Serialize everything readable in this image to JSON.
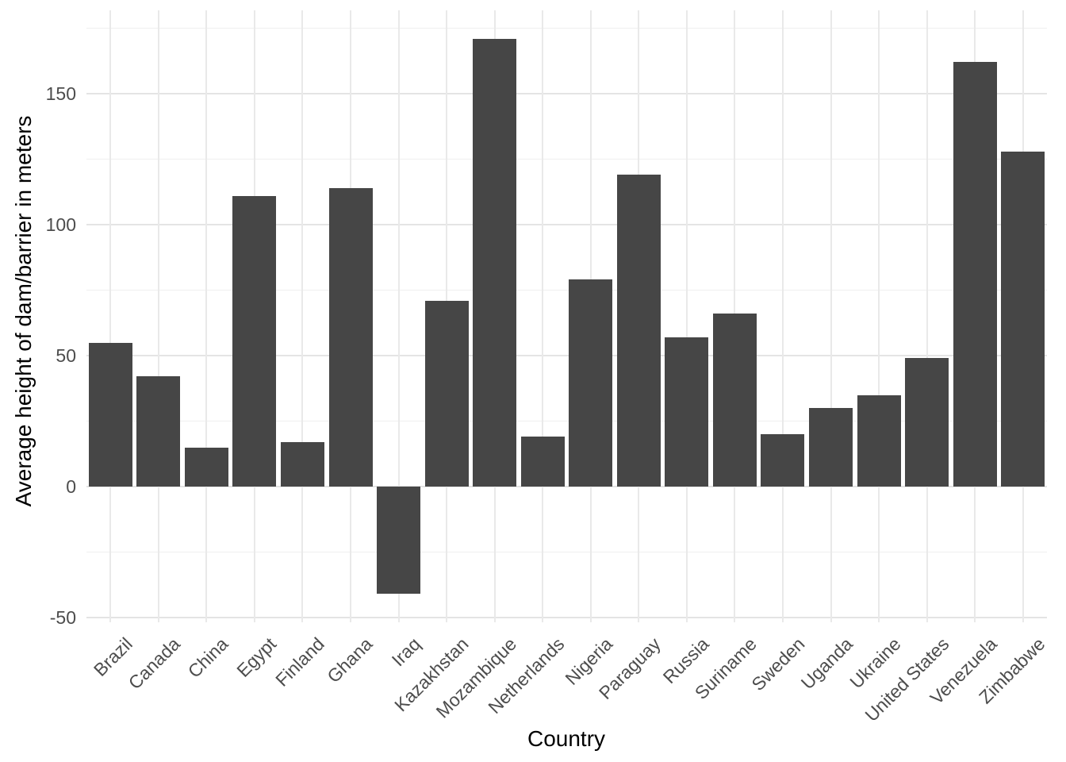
{
  "chart_data": {
    "type": "bar",
    "title": "",
    "xlabel": "Country",
    "ylabel": "Average height of dam/barrier in meters",
    "categories": [
      "Brazil",
      "Canada",
      "China",
      "Egypt",
      "Finland",
      "Ghana",
      "Iraq",
      "Kazakhstan",
      "Mozambique",
      "Netherlands",
      "Nigeria",
      "Paraguay",
      "Russia",
      "Suriname",
      "Sweden",
      "Uganda",
      "Ukraine",
      "United States",
      "Venezuela",
      "Zimbabwe"
    ],
    "values": [
      55,
      42,
      15,
      111,
      17,
      114,
      -41,
      71,
      171,
      19,
      79,
      119,
      57,
      66,
      20,
      30,
      35,
      49,
      162,
      128
    ],
    "yticks_major": [
      -50,
      0,
      50,
      100,
      150
    ],
    "yticks_minor": [
      -25,
      25,
      75,
      125,
      175
    ],
    "ylim": [
      -52,
      182
    ],
    "grid": "on",
    "legend": "none",
    "bar_color": "#464646",
    "grid_major_color": "#e4e4e4",
    "grid_minor_color": "#efefef",
    "tick_label_color": "#4d4d4d",
    "axis_title_color": "#000000",
    "background_color": "#ffffff"
  }
}
